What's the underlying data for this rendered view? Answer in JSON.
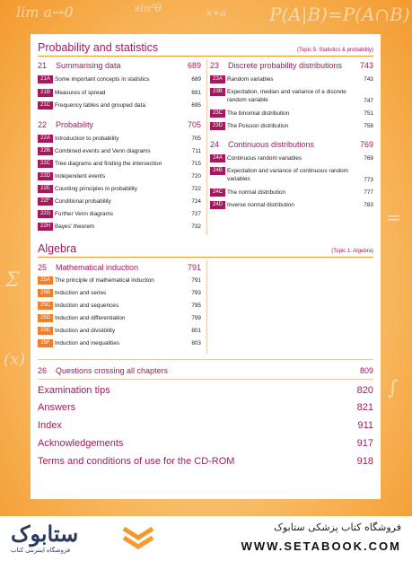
{
  "background": {
    "formulas": [
      "lim a→0",
      "P(A|B)=P(A∩B)",
      "sin²θ",
      "x+a",
      "Σ",
      "(x)",
      "=",
      "∫"
    ]
  },
  "colors": {
    "accent": "#a3195b",
    "orange": "#ee7f2d",
    "rule": "#f29a2c"
  },
  "probability_section": {
    "title": "Probability and statistics",
    "topic": "(Topic 5: Statistics & probability)",
    "chapters_left": [
      {
        "num": "21",
        "title": "Summarising data",
        "page": "689",
        "items": [
          {
            "tag": "21A",
            "text": "Some important concepts in statistics",
            "page": "689"
          },
          {
            "tag": "21B",
            "text": "Measures of spread",
            "page": "691"
          },
          {
            "tag": "21C",
            "text": "Frequency tables and grouped data",
            "page": "695"
          }
        ]
      },
      {
        "num": "22",
        "title": "Probability",
        "page": "705",
        "items": [
          {
            "tag": "22A",
            "text": "Introduction to probability",
            "page": "705"
          },
          {
            "tag": "22B",
            "text": "Combined events and Venn diagrams",
            "page": "711"
          },
          {
            "tag": "22C",
            "text": "Tree diagrams and finding the intersection",
            "page": "715"
          },
          {
            "tag": "22D",
            "text": "Independent events",
            "page": "720"
          },
          {
            "tag": "22E",
            "text": "Counting principles in probability",
            "page": "722"
          },
          {
            "tag": "22F",
            "text": "Conditional probability",
            "page": "724"
          },
          {
            "tag": "22G",
            "text": "Further Venn diagrams",
            "page": "727"
          },
          {
            "tag": "22H",
            "text": "Bayes' theorem",
            "page": "732"
          }
        ]
      }
    ],
    "chapters_right": [
      {
        "num": "23",
        "title": "Discrete probability distributions",
        "page": "743",
        "items": [
          {
            "tag": "23A",
            "text": "Random variables",
            "page": "743"
          },
          {
            "tag": "23B",
            "text": "Expectation, median and variance of a discrete random variable",
            "page": "747"
          },
          {
            "tag": "23C",
            "text": "The binomial distribution",
            "page": "751"
          },
          {
            "tag": "23D",
            "text": "The Poisson distribution",
            "page": "758"
          }
        ]
      },
      {
        "num": "24",
        "title": "Continuous distributions",
        "page": "769",
        "items": [
          {
            "tag": "24A",
            "text": "Continuous random variables",
            "page": "769"
          },
          {
            "tag": "24B",
            "text": "Expectation and variance of continuous random variables",
            "page": "773"
          },
          {
            "tag": "24C",
            "text": "The normal distribution",
            "page": "777"
          },
          {
            "tag": "24D",
            "text": "Inverse normal distribution",
            "page": "783"
          }
        ]
      }
    ]
  },
  "algebra_section": {
    "title": "Algebra",
    "topic": "(Topic 1: Algebra)",
    "chapter": {
      "num": "25",
      "title": "Mathematical induction",
      "page": "791",
      "items": [
        {
          "tag": "25A",
          "text": "The principle of mathematical induction",
          "page": "791"
        },
        {
          "tag": "25B",
          "text": "Induction and series",
          "page": "793"
        },
        {
          "tag": "25C",
          "text": "Induction and sequences",
          "page": "795"
        },
        {
          "tag": "25D",
          "text": "Induction and differentiation",
          "page": "799"
        },
        {
          "tag": "25E",
          "text": "Induction and divisibility",
          "page": "801"
        },
        {
          "tag": "25F",
          "text": "Induction and inequalities",
          "page": "803"
        }
      ]
    }
  },
  "crossing": {
    "num": "26",
    "title": "Questions crossing all chapters",
    "page": "809"
  },
  "back_matter": [
    {
      "title": "Examination tips",
      "page": "820"
    },
    {
      "title": "Answers",
      "page": "821"
    },
    {
      "title": "Index",
      "page": "911"
    },
    {
      "title": "Acknowledgements",
      "page": "917"
    },
    {
      "title": "Terms and conditions of use for the CD-ROM",
      "page": "918"
    }
  ],
  "footer": {
    "logo_main": "ستابوک",
    "logo_sub": "فروشگاه اینترنتی کتاب",
    "store_name": "فروشگاه کتاب پزشکی ستابوک",
    "url": "WWW.SETABOOK.COM"
  }
}
